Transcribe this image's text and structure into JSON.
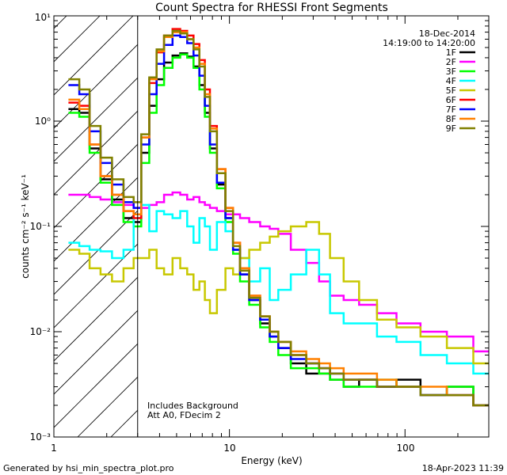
{
  "chart_data": {
    "type": "line",
    "title": "Count Spectra for RHESSI Front Segments",
    "xlabel": "Energy (keV)",
    "ylabel": "counts cm⁻² s⁻¹ keV⁻¹",
    "xscale": "log",
    "yscale": "log",
    "xlim": [
      1,
      300
    ],
    "ylim": [
      0.001,
      10
    ],
    "x_ticklabels": [
      "1",
      "10",
      "100"
    ],
    "y_ticklabels": [
      "10⁻³",
      "10⁻²",
      "10⁻¹",
      "10⁰",
      "10¹"
    ],
    "date": "18-Dec-2014",
    "time_range": "14:19:00 to 14:20:00",
    "shaded_region_keV": [
      1,
      3
    ],
    "annotations": [
      "Includes Background",
      "Att A0, FDecim 2"
    ],
    "footer_left": "Generated by hsi_min_spectra_plot.pro",
    "footer_right": "18-Apr-2023 11:39",
    "energy_keV": [
      1.3,
      1.5,
      1.7,
      2.0,
      2.3,
      2.7,
      3.0,
      3.3,
      3.7,
      4.0,
      4.5,
      5.0,
      5.5,
      6.0,
      6.5,
      7.0,
      7.5,
      8.0,
      9.0,
      10,
      11,
      12,
      14,
      16,
      18,
      20,
      25,
      30,
      35,
      40,
      50,
      60,
      80,
      100,
      150,
      200,
      300
    ],
    "series": [
      {
        "name": "1F",
        "color": "#000000",
        "values": [
          1.3,
          1.2,
          0.55,
          0.28,
          0.18,
          0.12,
          0.11,
          0.5,
          1.4,
          2.5,
          3.6,
          4.2,
          4.4,
          4.1,
          3.3,
          2.2,
          1.2,
          0.55,
          0.25,
          0.12,
          0.06,
          0.035,
          0.02,
          0.012,
          0.009,
          0.007,
          0.005,
          0.004,
          0.004,
          0.0035,
          0.003,
          0.0035,
          0.003,
          0.0035,
          0.0025,
          0.003,
          0.002
        ]
      },
      {
        "name": "2F",
        "color": "#ff00ff",
        "values": [
          0.2,
          0.2,
          0.19,
          0.18,
          0.17,
          0.16,
          0.15,
          0.15,
          0.16,
          0.17,
          0.2,
          0.21,
          0.2,
          0.18,
          0.19,
          0.17,
          0.16,
          0.15,
          0.14,
          0.13,
          0.13,
          0.12,
          0.11,
          0.1,
          0.095,
          0.085,
          0.06,
          0.045,
          0.03,
          0.022,
          0.02,
          0.018,
          0.015,
          0.012,
          0.01,
          0.009,
          0.0065
        ]
      },
      {
        "name": "3F",
        "color": "#00ff00",
        "values": [
          1.2,
          1.1,
          0.5,
          0.26,
          0.16,
          0.11,
          0.1,
          0.4,
          1.2,
          2.2,
          3.2,
          4.0,
          4.3,
          4.0,
          3.2,
          2.0,
          1.1,
          0.5,
          0.23,
          0.11,
          0.055,
          0.03,
          0.018,
          0.011,
          0.008,
          0.006,
          0.0045,
          0.0045,
          0.004,
          0.0035,
          0.003,
          0.003,
          0.0035,
          0.003,
          0.0025,
          0.003,
          0.002
        ]
      },
      {
        "name": "4F",
        "color": "#00ffff",
        "values": [
          0.07,
          0.065,
          0.06,
          0.058,
          0.05,
          0.06,
          0.12,
          0.16,
          0.09,
          0.14,
          0.13,
          0.12,
          0.14,
          0.1,
          0.07,
          0.12,
          0.1,
          0.06,
          0.11,
          0.09,
          0.06,
          0.05,
          0.03,
          0.04,
          0.02,
          0.025,
          0.035,
          0.06,
          0.035,
          0.015,
          0.012,
          0.012,
          0.009,
          0.008,
          0.006,
          0.005,
          0.004
        ]
      },
      {
        "name": "5F",
        "color": "#c8c800",
        "values": [
          0.06,
          0.055,
          0.04,
          0.035,
          0.03,
          0.04,
          0.05,
          0.05,
          0.06,
          0.04,
          0.035,
          0.05,
          0.04,
          0.035,
          0.025,
          0.03,
          0.02,
          0.015,
          0.025,
          0.04,
          0.035,
          0.05,
          0.06,
          0.07,
          0.08,
          0.09,
          0.1,
          0.11,
          0.085,
          0.05,
          0.03,
          0.02,
          0.013,
          0.011,
          0.009,
          0.007,
          0.005
        ]
      },
      {
        "name": "6F",
        "color": "#ff0000",
        "values": [
          1.5,
          1.4,
          0.6,
          0.3,
          0.2,
          0.14,
          0.12,
          0.7,
          2.3,
          4.5,
          6.5,
          7.5,
          7.2,
          6.5,
          5.4,
          3.8,
          2.0,
          0.9,
          0.35,
          0.15,
          0.07,
          0.04,
          0.022,
          0.014,
          0.01,
          0.008,
          0.006,
          0.005,
          0.0045,
          0.004,
          0.0035,
          0.0035,
          0.003,
          0.003,
          0.0025,
          0.0025,
          0.002
        ]
      },
      {
        "name": "7F",
        "color": "#0000ff",
        "values": [
          2.2,
          1.8,
          0.8,
          0.4,
          0.25,
          0.17,
          0.15,
          0.6,
          1.8,
          3.5,
          5.3,
          6.5,
          6.3,
          5.5,
          4.2,
          2.7,
          1.4,
          0.6,
          0.26,
          0.12,
          0.06,
          0.035,
          0.02,
          0.013,
          0.009,
          0.007,
          0.0055,
          0.005,
          0.0045,
          0.004,
          0.0035,
          0.0035,
          0.003,
          0.003,
          0.0025,
          0.0025,
          0.002
        ]
      },
      {
        "name": "8F",
        "color": "#ff8000",
        "values": [
          1.6,
          1.3,
          0.6,
          0.3,
          0.2,
          0.14,
          0.13,
          0.7,
          2.5,
          4.6,
          6.3,
          7.0,
          7.0,
          6.0,
          5.0,
          3.5,
          1.8,
          0.85,
          0.35,
          0.15,
          0.07,
          0.04,
          0.022,
          0.014,
          0.01,
          0.008,
          0.0065,
          0.0055,
          0.005,
          0.0045,
          0.004,
          0.004,
          0.0035,
          0.003,
          0.003,
          0.0025,
          0.002
        ]
      },
      {
        "name": "9F",
        "color": "#808000",
        "values": [
          2.5,
          2.0,
          0.9,
          0.45,
          0.28,
          0.19,
          0.17,
          0.75,
          2.6,
          4.8,
          6.5,
          7.2,
          6.8,
          6.0,
          4.8,
          3.3,
          1.7,
          0.8,
          0.32,
          0.14,
          0.065,
          0.038,
          0.021,
          0.014,
          0.01,
          0.008,
          0.006,
          0.005,
          0.0045,
          0.004,
          0.0035,
          0.0035,
          0.003,
          0.003,
          0.0025,
          0.0025,
          0.002
        ]
      }
    ]
  }
}
